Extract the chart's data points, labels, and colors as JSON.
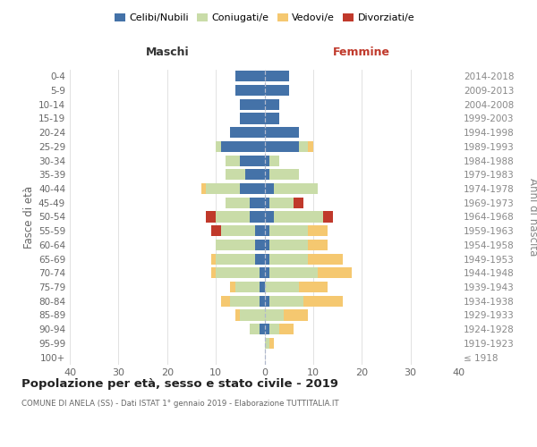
{
  "age_groups": [
    "100+",
    "95-99",
    "90-94",
    "85-89",
    "80-84",
    "75-79",
    "70-74",
    "65-69",
    "60-64",
    "55-59",
    "50-54",
    "45-49",
    "40-44",
    "35-39",
    "30-34",
    "25-29",
    "20-24",
    "15-19",
    "10-14",
    "5-9",
    "0-4"
  ],
  "birth_years": [
    "≤ 1918",
    "1919-1923",
    "1924-1928",
    "1929-1933",
    "1934-1938",
    "1939-1943",
    "1944-1948",
    "1949-1953",
    "1954-1958",
    "1959-1963",
    "1964-1968",
    "1969-1973",
    "1974-1978",
    "1979-1983",
    "1984-1988",
    "1989-1993",
    "1994-1998",
    "1999-2003",
    "2004-2008",
    "2009-2013",
    "2014-2018"
  ],
  "male_celibi": [
    0,
    0,
    1,
    0,
    1,
    1,
    1,
    2,
    2,
    2,
    3,
    3,
    5,
    4,
    5,
    9,
    7,
    5,
    5,
    6,
    6
  ],
  "male_coniugati": [
    0,
    0,
    2,
    5,
    6,
    5,
    9,
    8,
    8,
    7,
    7,
    5,
    7,
    4,
    3,
    1,
    0,
    0,
    0,
    0,
    0
  ],
  "male_vedovi": [
    0,
    0,
    0,
    1,
    2,
    1,
    1,
    1,
    0,
    0,
    0,
    0,
    1,
    0,
    0,
    0,
    0,
    0,
    0,
    0,
    0
  ],
  "male_divorziati": [
    0,
    0,
    0,
    0,
    0,
    0,
    0,
    0,
    0,
    2,
    2,
    0,
    0,
    0,
    0,
    0,
    0,
    0,
    0,
    0,
    0
  ],
  "female_nubili": [
    0,
    0,
    1,
    0,
    1,
    0,
    1,
    1,
    1,
    1,
    2,
    1,
    2,
    1,
    1,
    7,
    7,
    3,
    3,
    5,
    5
  ],
  "female_coniugate": [
    0,
    1,
    2,
    4,
    7,
    7,
    10,
    8,
    8,
    8,
    10,
    5,
    9,
    6,
    2,
    2,
    0,
    0,
    0,
    0,
    0
  ],
  "female_vedove": [
    0,
    1,
    3,
    5,
    8,
    6,
    7,
    7,
    4,
    4,
    0,
    0,
    0,
    0,
    0,
    1,
    0,
    0,
    0,
    0,
    0
  ],
  "female_divorziate": [
    0,
    0,
    0,
    0,
    0,
    0,
    0,
    0,
    0,
    0,
    2,
    2,
    0,
    0,
    0,
    0,
    0,
    0,
    0,
    0,
    0
  ],
  "color_celibi": "#4472a8",
  "color_coniugati": "#c9dca8",
  "color_vedovi": "#f5c870",
  "color_divorziati": "#c0392b",
  "xlim": 40,
  "title": "Popolazione per età, sesso e stato civile - 2019",
  "subtitle": "COMUNE DI ANELA (SS) - Dati ISTAT 1° gennaio 2019 - Elaborazione TUTTITALIA.IT",
  "ylabel_left": "Fasce di età",
  "ylabel_right": "Anni di nascita",
  "label_maschi": "Maschi",
  "label_femmine": "Femmine",
  "legend_labels": [
    "Celibi/Nubili",
    "Coniugati/e",
    "Vedovi/e",
    "Divorziati/e"
  ]
}
